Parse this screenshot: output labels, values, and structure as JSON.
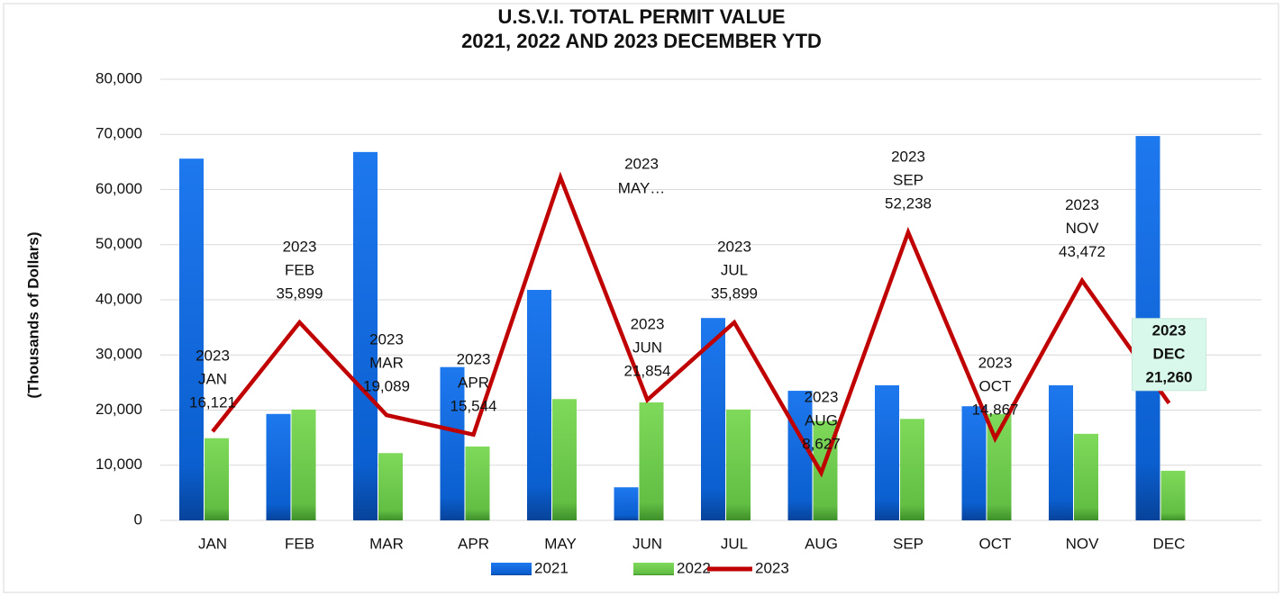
{
  "chart_data": {
    "type": "bar-line",
    "title": [
      "U.S.V.I. TOTAL PERMIT VALUE",
      "2021, 2022 AND 2023 DECEMBER YTD"
    ],
    "y_label": "(Thousands of Dollars)",
    "categories": [
      "JAN",
      "FEB",
      "MAR",
      "APR",
      "MAY",
      "JUN",
      "JUL",
      "AUG",
      "SEP",
      "OCT",
      "NOV",
      "DEC"
    ],
    "series": [
      {
        "name": "2021",
        "type": "bar",
        "color": "#0b63d6",
        "values": [
          65600,
          19300,
          66800,
          27800,
          41800,
          6000,
          36700,
          23500,
          24500,
          20700,
          24500,
          69700
        ]
      },
      {
        "name": "2022",
        "type": "bar",
        "color": "#6cc84c",
        "values": [
          14900,
          20100,
          12200,
          13400,
          22000,
          21400,
          20100,
          18000,
          18400,
          19300,
          15700,
          9000
        ]
      },
      {
        "name": "2023",
        "type": "line",
        "color": "#c00000",
        "values": [
          16121,
          35899,
          19089,
          15544,
          62200,
          21854,
          35899,
          8627,
          52238,
          14867,
          43472,
          21260
        ],
        "value_labels": [
          "16,121",
          "35,899",
          "19,089",
          "15,544",
          null,
          "21,854",
          "35,899",
          "8,627",
          "52,238",
          "14,867",
          "43,472",
          "21,260"
        ]
      }
    ],
    "annotations": [
      {
        "text": "MAY…"
      }
    ],
    "ylim": [
      0,
      80000
    ],
    "yticks": [
      0,
      {
        "value": 10000,
        "label": "10,000"
      },
      {
        "value": 20000,
        "label": "20,000"
      },
      {
        "value": 30000,
        "label": "30,000"
      },
      {
        "value": 40000,
        "label": "40,000"
      },
      {
        "value": 50000,
        "label": "50,000"
      },
      {
        "value": 60000,
        "label": "60,000"
      },
      {
        "value": 70000,
        "label": "70,000"
      },
      {
        "value": 80000,
        "label": "80,000"
      }
    ],
    "grid": true,
    "legend": "bottom"
  }
}
